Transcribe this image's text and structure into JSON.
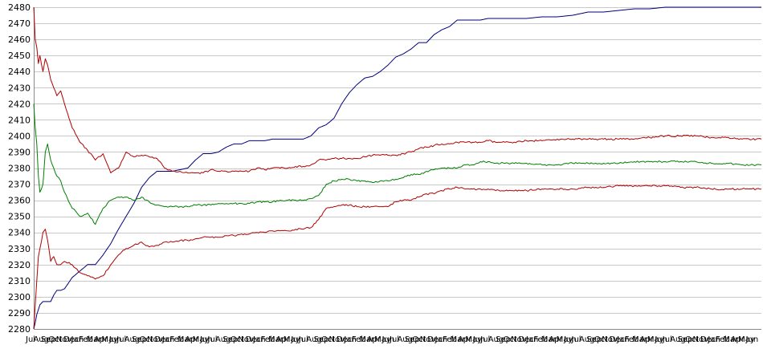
{
  "chart_data": {
    "type": "line",
    "title": "",
    "xlabel": "",
    "ylabel": "",
    "ylim": [
      2280,
      2480
    ],
    "yticks": [
      2280,
      2290,
      2300,
      2310,
      2320,
      2330,
      2340,
      2350,
      2360,
      2370,
      2380,
      2390,
      2400,
      2410,
      2420,
      2430,
      2440,
      2450,
      2460,
      2470,
      2480
    ],
    "grid": "horizontal",
    "legend": "none",
    "x_tick_labels": [
      "Jul",
      "Aug",
      "Sep",
      "Oct",
      "Nov",
      "Dec",
      "Jan",
      "Feb",
      "Mar",
      "Apr",
      "May",
      "Jun",
      "Jul",
      "Aug",
      "Sep",
      "Oct",
      "Nov",
      "Dec",
      "Jan",
      "Feb",
      "Mar",
      "Apr",
      "May",
      "Jun",
      "Jul",
      "Aug",
      "Sep",
      "Oct",
      "Nov",
      "Dec",
      "Jan",
      "Feb",
      "Mar",
      "Apr",
      "May",
      "Jun",
      "Jul",
      "Aug",
      "Sep",
      "Oct",
      "Nov",
      "Dec",
      "Jan",
      "Feb",
      "Mar",
      "Apr",
      "May",
      "Jun",
      "Jul",
      "Aug",
      "Sep",
      "Oct",
      "Nov",
      "Dec",
      "Jan",
      "Feb",
      "Mar",
      "Apr",
      "May",
      "Jun",
      "Jul",
      "Aug",
      "Sep",
      "Oct",
      "Nov",
      "Dec",
      "Jan",
      "Feb",
      "Mar",
      "Apr",
      "May",
      "Jun",
      "Jul",
      "Aug",
      "Sep",
      "Oct",
      "Nov",
      "Dec",
      "Jan",
      "Feb",
      "Mar",
      "Apr",
      "May",
      "Jun",
      "Jul",
      "Aug",
      "Sep",
      "Oct",
      "Nov",
      "Dec",
      "Jan",
      "Feb",
      "Mar",
      "Apr",
      "May",
      "Jun"
    ],
    "x": [
      0,
      2,
      4,
      6,
      8,
      12,
      15,
      18,
      22,
      26,
      30,
      35,
      40,
      50,
      60,
      70,
      80,
      90,
      100,
      110,
      120,
      130,
      140,
      150,
      160,
      170,
      180,
      190,
      200,
      210,
      220,
      230,
      240,
      250,
      260,
      270,
      280,
      290,
      300,
      310,
      320,
      330,
      340,
      350,
      360,
      370,
      380,
      390,
      400,
      410,
      420,
      430,
      440,
      450,
      460,
      470,
      480,
      490,
      500,
      510,
      520,
      530,
      540,
      550,
      560,
      570,
      580,
      590,
      600,
      620,
      640,
      660,
      680,
      700,
      720,
      740,
      760,
      780,
      800,
      820,
      840,
      860,
      880,
      900,
      920,
      945
    ],
    "series": [
      {
        "color": "#00007f",
        "values": [
          2280,
          2284,
          2289,
          2292,
          2295,
          2297,
          2297,
          2297,
          2297,
          2301,
          2304,
          2304,
          2305,
          2312,
          2316,
          2320,
          2320,
          2326,
          2333,
          2342,
          2350,
          2358,
          2368,
          2374,
          2378,
          2378,
          2378,
          2379,
          2380,
          2385,
          2389,
          2389,
          2390,
          2393,
          2395,
          2395,
          2397,
          2397,
          2397,
          2398,
          2398,
          2398,
          2398,
          2398,
          2400,
          2405,
          2407,
          2411,
          2420,
          2427,
          2432,
          2436,
          2437,
          2440,
          2444,
          2449,
          2451,
          2454,
          2458,
          2458,
          2463,
          2466,
          2468,
          2472,
          2472,
          2472,
          2472,
          2473,
          2473,
          2473,
          2473,
          2474,
          2474,
          2475,
          2477,
          2477,
          2478,
          2479,
          2479,
          2480,
          2480,
          2480,
          2480,
          2480,
          2480,
          2480
        ]
      },
      {
        "color": "#b00000",
        "values": [
          2480,
          2460,
          2455,
          2445,
          2450,
          2440,
          2448,
          2444,
          2435,
          2430,
          2425,
          2428,
          2420,
          2405,
          2396,
          2391,
          2385,
          2389,
          2377,
          2380,
          2390,
          2387,
          2388,
          2387,
          2386,
          2380,
          2378,
          2378,
          2377,
          2377,
          2377,
          2379,
          2378,
          2378,
          2378,
          2378,
          2378,
          2380,
          2379,
          2380,
          2380,
          2380,
          2381,
          2381,
          2382,
          2385,
          2385,
          2386,
          2386,
          2386,
          2386,
          2387,
          2388,
          2388,
          2388,
          2388,
          2389,
          2390,
          2392,
          2393,
          2394,
          2395,
          2395,
          2396,
          2396,
          2396,
          2396,
          2397,
          2396,
          2396,
          2397,
          2397,
          2398,
          2398,
          2398,
          2398,
          2398,
          2398,
          2399,
          2400,
          2400,
          2400,
          2399,
          2399,
          2398,
          2398
        ]
      },
      {
        "color": "#007f00",
        "values": [
          2420,
          2405,
          2395,
          2375,
          2365,
          2370,
          2390,
          2395,
          2385,
          2380,
          2375,
          2372,
          2365,
          2355,
          2350,
          2352,
          2345,
          2355,
          2360,
          2362,
          2362,
          2360,
          2362,
          2359,
          2357,
          2356,
          2356,
          2356,
          2356,
          2357,
          2357,
          2357,
          2358,
          2358,
          2358,
          2358,
          2358,
          2359,
          2359,
          2359,
          2360,
          2360,
          2360,
          2360,
          2361,
          2363,
          2370,
          2372,
          2373,
          2373,
          2372,
          2372,
          2371,
          2372,
          2372,
          2373,
          2374,
          2376,
          2376,
          2378,
          2379,
          2380,
          2380,
          2380,
          2382,
          2382,
          2384,
          2384,
          2383,
          2383,
          2383,
          2382,
          2382,
          2383,
          2383,
          2383,
          2383,
          2384,
          2384,
          2384,
          2384,
          2384,
          2383,
          2383,
          2382,
          2382
        ]
      },
      {
        "color": "#b00000",
        "values": [
          2280,
          2295,
          2310,
          2325,
          2330,
          2340,
          2342,
          2335,
          2322,
          2325,
          2320,
          2320,
          2322,
          2320,
          2315,
          2313,
          2311,
          2313,
          2320,
          2326,
          2330,
          2332,
          2334,
          2331,
          2332,
          2334,
          2334,
          2335,
          2335,
          2336,
          2337,
          2337,
          2337,
          2338,
          2338,
          2339,
          2339,
          2340,
          2340,
          2341,
          2341,
          2341,
          2342,
          2342,
          2343,
          2348,
          2355,
          2356,
          2357,
          2357,
          2356,
          2356,
          2356,
          2356,
          2356,
          2359,
          2360,
          2360,
          2362,
          2364,
          2364,
          2366,
          2367,
          2368,
          2367,
          2367,
          2367,
          2367,
          2366,
          2366,
          2366,
          2367,
          2367,
          2367,
          2368,
          2368,
          2369,
          2369,
          2369,
          2369,
          2368,
          2368,
          2367,
          2367,
          2367,
          2367
        ]
      }
    ]
  }
}
